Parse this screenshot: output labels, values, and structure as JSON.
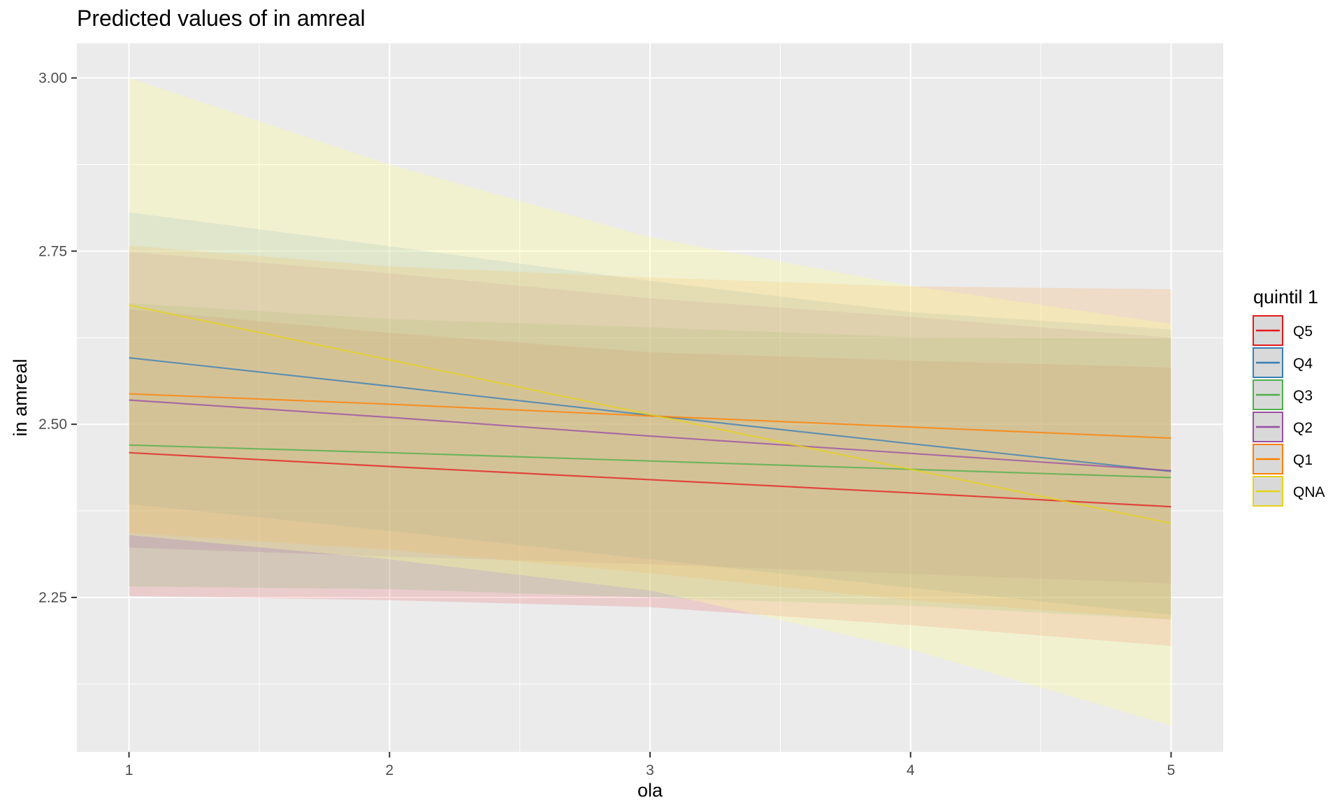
{
  "chart_data": {
    "type": "line",
    "title": "Predicted values of in amreal",
    "xlabel": "ola",
    "ylabel": "in amreal",
    "x": [
      1,
      2,
      3,
      4,
      5
    ],
    "x_ticks": [
      "1",
      "2",
      "3",
      "4",
      "5"
    ],
    "y_ticks": [
      "2.25",
      "2.50",
      "2.75",
      "3.00"
    ],
    "xlim": [
      0.8,
      5.2
    ],
    "ylim": [
      2.027,
      3.05
    ],
    "grid": true,
    "legend_position": "right",
    "legend_title": "quintil 1",
    "series": [
      {
        "name": "Q5",
        "color": "#e41a1c",
        "values": [
          2.459,
          2.439,
          2.42,
          2.401,
          2.381
        ],
        "lower": [
          2.252,
          2.246,
          2.236,
          2.21,
          2.18
        ],
        "upper": [
          2.666,
          2.632,
          2.604,
          2.592,
          2.582
        ]
      },
      {
        "name": "Q4",
        "color": "#377eb8",
        "values": [
          2.596,
          2.555,
          2.513,
          2.472,
          2.432
        ],
        "lower": [
          2.385,
          2.346,
          2.305,
          2.264,
          2.225
        ],
        "upper": [
          2.806,
          2.757,
          2.707,
          2.662,
          2.637
        ]
      },
      {
        "name": "Q3",
        "color": "#4daf4a",
        "values": [
          2.47,
          2.459,
          2.447,
          2.435,
          2.423
        ],
        "lower": [
          2.266,
          2.262,
          2.25,
          2.238,
          2.218
        ],
        "upper": [
          2.675,
          2.652,
          2.64,
          2.626,
          2.624
        ]
      },
      {
        "name": "Q2",
        "color": "#984ea3",
        "values": [
          2.535,
          2.51,
          2.483,
          2.458,
          2.433
        ],
        "lower": [
          2.322,
          2.309,
          2.298,
          2.284,
          2.27
        ],
        "upper": [
          2.749,
          2.718,
          2.682,
          2.655,
          2.625
        ]
      },
      {
        "name": "Q1",
        "color": "#ff7f00",
        "values": [
          2.544,
          2.529,
          2.512,
          2.496,
          2.48
        ],
        "lower": [
          2.343,
          2.319,
          2.285,
          2.246,
          2.218
        ],
        "upper": [
          2.758,
          2.728,
          2.712,
          2.699,
          2.695
        ]
      },
      {
        "name": "QNA",
        "color": "#e5d31a",
        "band_color": "#ffff99",
        "values": [
          2.672,
          2.593,
          2.514,
          2.435,
          2.357
        ],
        "lower": [
          2.34,
          2.305,
          2.26,
          2.175,
          2.065
        ],
        "upper": [
          3.0,
          2.875,
          2.77,
          2.7,
          2.645
        ]
      }
    ]
  }
}
